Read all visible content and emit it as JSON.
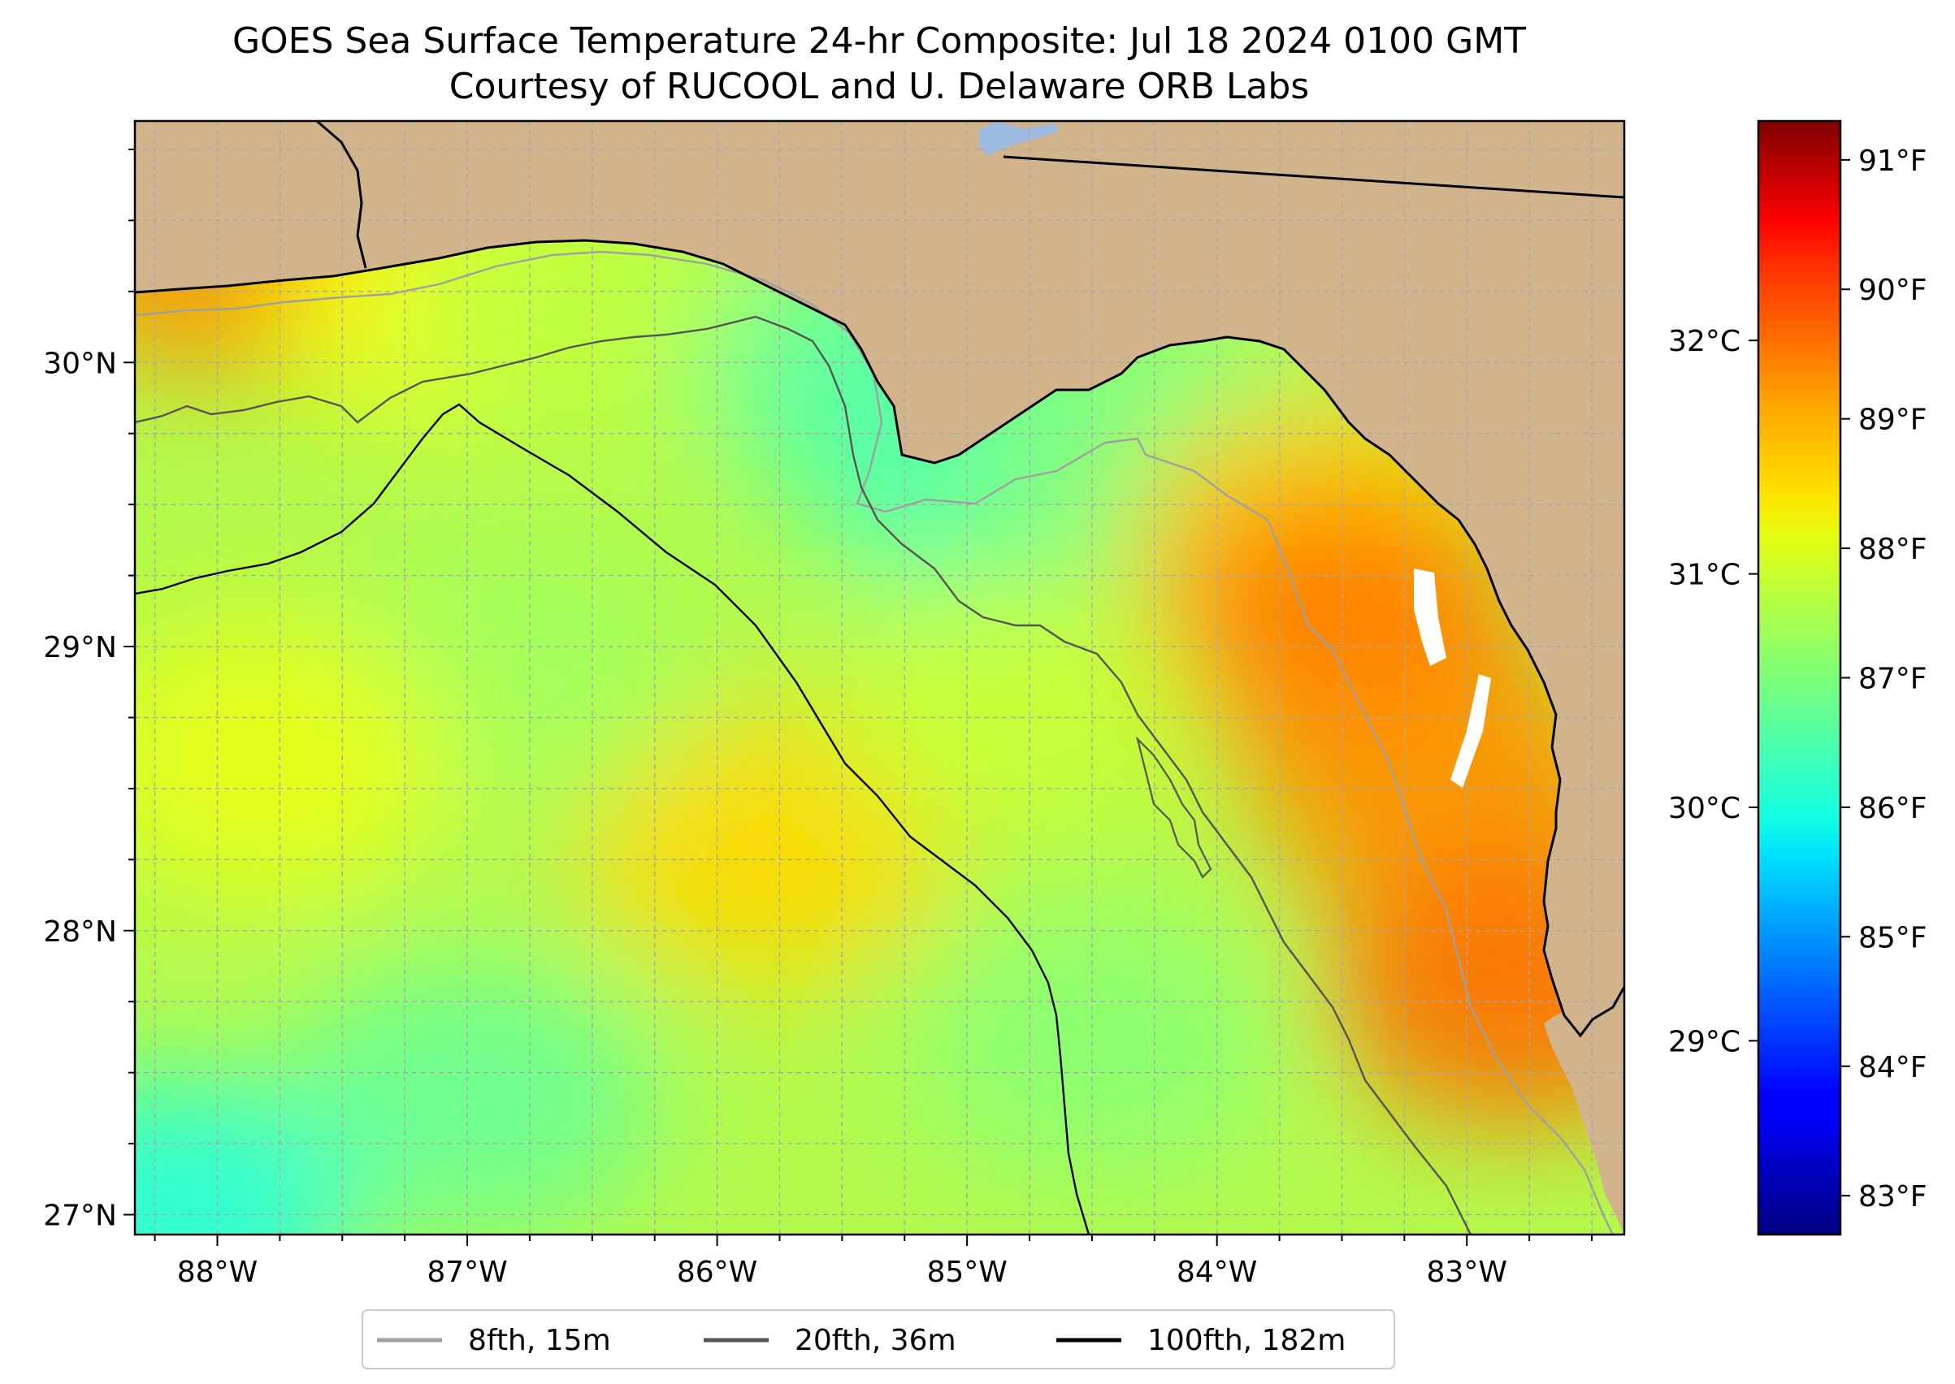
{
  "title": {
    "line1": "GOES Sea Surface Temperature 24-hr Composite: Jul 18 2024 0100 GMT",
    "line2": "Courtesy of RUCOOL and U. Delaware ORB Labs"
  },
  "map": {
    "lon_range": [
      -88.33,
      -82.37
    ],
    "lat_range": [
      26.93,
      30.85
    ],
    "lon_ticks": [
      {
        "lon": -88,
        "label": "88°W"
      },
      {
        "lon": -87,
        "label": "87°W"
      },
      {
        "lon": -86,
        "label": "86°W"
      },
      {
        "lon": -85,
        "label": "85°W"
      },
      {
        "lon": -84,
        "label": "84°W"
      },
      {
        "lon": -83,
        "label": "83°W"
      }
    ],
    "lat_ticks": [
      {
        "lat": 30,
        "label": "30°N"
      },
      {
        "lat": 29,
        "label": "29°N"
      },
      {
        "lat": 28,
        "label": "28°N"
      },
      {
        "lat": 27,
        "label": "27°N"
      }
    ],
    "grid_step_deg": 0.25,
    "colors": {
      "land": "#d2b48c",
      "lake": "#9dbbe0",
      "grid": "#a8a8a8",
      "coast": "#000000"
    },
    "sst_regions": [
      {
        "lon": -88.0,
        "lat": 30.45,
        "temp_f": 89.0
      },
      {
        "lon": -87.0,
        "lat": 30.25,
        "temp_f": 88.0
      },
      {
        "lon": -86.5,
        "lat": 30.2,
        "temp_f": 87.5
      },
      {
        "lon": -85.3,
        "lat": 29.95,
        "temp_f": 86.7
      },
      {
        "lon": -84.9,
        "lat": 29.6,
        "temp_f": 86.6
      },
      {
        "lon": -84.3,
        "lat": 29.75,
        "temp_f": 87.0
      },
      {
        "lon": -83.6,
        "lat": 29.4,
        "temp_f": 88.5
      },
      {
        "lon": -83.5,
        "lat": 29.05,
        "temp_f": 89.2
      },
      {
        "lon": -83.1,
        "lat": 28.5,
        "temp_f": 89.0
      },
      {
        "lon": -82.8,
        "lat": 27.8,
        "temp_f": 89.3
      },
      {
        "lon": -85.8,
        "lat": 28.3,
        "temp_f": 88.4
      },
      {
        "lon": -86.8,
        "lat": 28.9,
        "temp_f": 87.3
      },
      {
        "lon": -87.8,
        "lat": 28.6,
        "temp_f": 87.9
      },
      {
        "lon": -87.0,
        "lat": 27.4,
        "temp_f": 86.8
      },
      {
        "lon": -88.2,
        "lat": 27.0,
        "temp_f": 86.2
      },
      {
        "lon": -84.5,
        "lat": 27.6,
        "temp_f": 87.1
      },
      {
        "lon": -84.8,
        "lat": 28.8,
        "temp_f": 87.6
      }
    ]
  },
  "colorbar": {
    "cmap": "jet",
    "f_range": [
      82.7,
      91.3
    ],
    "c_range": [
      28.17,
      32.94
    ],
    "f_ticks": [
      {
        "value": 83,
        "label": "83°F"
      },
      {
        "value": 84,
        "label": "84°F"
      },
      {
        "value": 85,
        "label": "85°F"
      },
      {
        "value": 86,
        "label": "86°F"
      },
      {
        "value": 87,
        "label": "87°F"
      },
      {
        "value": 88,
        "label": "88°F"
      },
      {
        "value": 89,
        "label": "89°F"
      },
      {
        "value": 90,
        "label": "90°F"
      },
      {
        "value": 91,
        "label": "91°F"
      }
    ],
    "c_ticks": [
      {
        "value": 29,
        "label": "29°C"
      },
      {
        "value": 30,
        "label": "30°C"
      },
      {
        "value": 31,
        "label": "31°C"
      },
      {
        "value": 32,
        "label": "32°C"
      }
    ]
  },
  "legend": {
    "items": [
      {
        "label": "8fth, 15m",
        "color": "#a0a0a0"
      },
      {
        "label": "20fth, 36m",
        "color": "#555555"
      },
      {
        "label": "100fth, 182m",
        "color": "#000000"
      }
    ]
  }
}
